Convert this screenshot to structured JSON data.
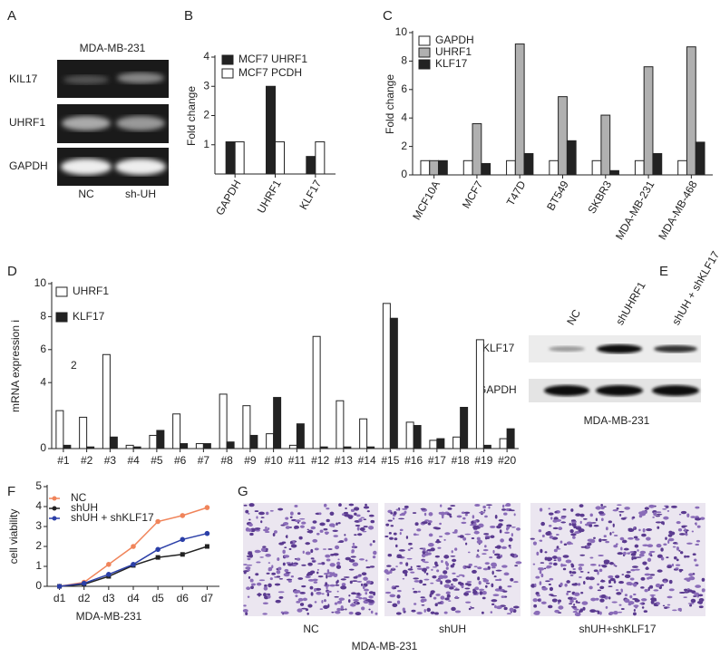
{
  "panel_a": {
    "panel": "A",
    "title": "MDA-MB-231",
    "rows": [
      "KIL17",
      "UHRF1",
      "GAPDH"
    ],
    "lanes": [
      "NC",
      "sh-UH"
    ]
  },
  "panel_e": {
    "panel": "E",
    "lanes": [
      "NC",
      "shUHRF1",
      "shUH + shKLF17"
    ],
    "rows": [
      "KLF17",
      "GAPDH"
    ],
    "caption": "MDA-MB-231"
  },
  "panel_g": {
    "panel": "G",
    "labels": [
      "NC",
      "shUH",
      "shUH+shKLF17"
    ],
    "caption": "MDA-MB-231"
  },
  "chart_data": [
    {
      "type": "bar",
      "panel": "B",
      "ylabel": "Fold change",
      "categories": [
        "GAPDH",
        "UHRF1",
        "KLF17"
      ],
      "series": [
        {
          "name": "MCF7 UHRF1",
          "color": "#222222",
          "values": [
            1.1,
            3.0,
            0.6
          ]
        },
        {
          "name": "MCF7 PCDH",
          "color": "#ffffff",
          "values": [
            1.1,
            1.1,
            1.1
          ]
        }
      ],
      "ylim": [
        0,
        4
      ],
      "yticks": [
        1,
        2,
        3,
        4
      ]
    },
    {
      "type": "bar",
      "panel": "C",
      "ylabel": "Fold change",
      "categories": [
        "MCF10A",
        "MCF7",
        "T47D",
        "BT549",
        "SKBR3",
        "MDA-MB-231",
        "MDA-MB-468"
      ],
      "series": [
        {
          "name": "GAPDH",
          "color": "#ffffff",
          "values": [
            1,
            1,
            1,
            1,
            1,
            1,
            1
          ]
        },
        {
          "name": "UHRF1",
          "color": "#b0b0b0",
          "values": [
            1.0,
            3.6,
            9.2,
            5.5,
            4.2,
            7.6,
            9.0
          ]
        },
        {
          "name": "KLF17",
          "color": "#222222",
          "values": [
            1.0,
            0.8,
            1.5,
            2.4,
            0.3,
            1.5,
            2.3
          ]
        }
      ],
      "ylim": [
        0,
        10
      ],
      "yticks": [
        0,
        2,
        4,
        6,
        8,
        10
      ]
    },
    {
      "type": "bar",
      "panel": "D",
      "ylabel": "mRNA expression i",
      "categories": [
        "#1",
        "#2",
        "#3",
        "#4",
        "#5",
        "#6",
        "#7",
        "#8",
        "#9",
        "#10",
        "#11",
        "#12",
        "#13",
        "#14",
        "#15",
        "#16",
        "#17",
        "#18",
        "#19",
        "#20"
      ],
      "series": [
        {
          "name": "UHRF1",
          "color": "#ffffff",
          "values": [
            2.3,
            1.9,
            5.7,
            0.2,
            0.8,
            2.1,
            0.3,
            3.3,
            2.6,
            0.9,
            0.2,
            6.8,
            2.9,
            1.8,
            8.8,
            1.6,
            0.5,
            0.7,
            6.6,
            0.6
          ]
        },
        {
          "name": "KLF17",
          "color": "#222222",
          "values": [
            0.2,
            0.1,
            0.7,
            0.1,
            1.1,
            0.3,
            0.3,
            0.4,
            0.8,
            3.1,
            1.5,
            0.1,
            0.1,
            0.1,
            7.9,
            1.4,
            0.6,
            2.5,
            0.2,
            1.2
          ]
        }
      ],
      "ylim": [
        0,
        10
      ],
      "yticks": [
        0,
        4,
        6,
        8,
        10
      ],
      "annotations": [
        {
          "text": "2"
        }
      ]
    },
    {
      "type": "line",
      "panel": "F",
      "ylabel": "cell viability",
      "xlabel": "MDA-MB-231",
      "categories": [
        "d1",
        "d2",
        "d3",
        "d4",
        "d5",
        "d6",
        "d7"
      ],
      "series": [
        {
          "name": "NC",
          "color": "#f0845a",
          "marker": "circle",
          "values": [
            0,
            0.2,
            1.1,
            2.0,
            3.25,
            3.55,
            3.95
          ]
        },
        {
          "name": "shUH",
          "color": "#222222",
          "marker": "square",
          "values": [
            0,
            0.1,
            0.5,
            1.05,
            1.45,
            1.6,
            2.0
          ]
        },
        {
          "name": "shUH + shKLF17",
          "color": "#2b3fa8",
          "marker": "circle",
          "values": [
            0,
            0.15,
            0.6,
            1.1,
            1.85,
            2.35,
            2.65
          ]
        }
      ],
      "ylim": [
        0,
        5
      ],
      "yticks": [
        0,
        1,
        2,
        3,
        4,
        5
      ]
    }
  ]
}
